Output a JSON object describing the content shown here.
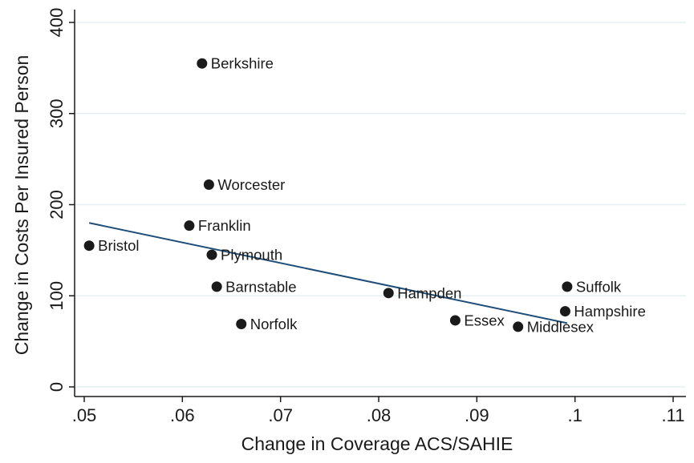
{
  "chart_data": {
    "type": "scatter",
    "title": "",
    "xlabel": "Change in Coverage ACS/SAHIE",
    "ylabel": "Change in Costs Per Insured Person",
    "xlim": [
      0.05,
      0.11
    ],
    "ylim": [
      0,
      400
    ],
    "x_ticks": [
      0.05,
      0.06,
      0.07,
      0.08,
      0.09,
      0.1,
      0.11
    ],
    "x_tick_labels": [
      ".05",
      ".06",
      ".07",
      ".08",
      ".09",
      ".1",
      ".11"
    ],
    "y_ticks": [
      0,
      100,
      200,
      300,
      400
    ],
    "y_tick_labels": [
      "0",
      "100",
      "200",
      "300",
      "400"
    ],
    "grid": "horizontal",
    "points": [
      {
        "label": "Berkshire",
        "x": 0.062,
        "y": 355
      },
      {
        "label": "Worcester",
        "x": 0.0627,
        "y": 222
      },
      {
        "label": "Franklin",
        "x": 0.0607,
        "y": 177
      },
      {
        "label": "Bristol",
        "x": 0.0505,
        "y": 155
      },
      {
        "label": "Plymouth",
        "x": 0.063,
        "y": 145
      },
      {
        "label": "Barnstable",
        "x": 0.0635,
        "y": 110
      },
      {
        "label": "Norfolk",
        "x": 0.066,
        "y": 69
      },
      {
        "label": "Hampden",
        "x": 0.081,
        "y": 103
      },
      {
        "label": "Essex",
        "x": 0.0878,
        "y": 73
      },
      {
        "label": "Middlesex",
        "x": 0.0942,
        "y": 66
      },
      {
        "label": "Suffolk",
        "x": 0.0992,
        "y": 110
      },
      {
        "label": "Hampshire",
        "x": 0.099,
        "y": 83
      }
    ],
    "fit_line": {
      "x": [
        0.0505,
        0.0992
      ],
      "y": [
        180,
        70
      ]
    },
    "colors": {
      "points": "#1a1a1a",
      "fit_line": "#1f4e79",
      "grid": "#e6f0f2",
      "axis": "#1a1a1a"
    }
  }
}
